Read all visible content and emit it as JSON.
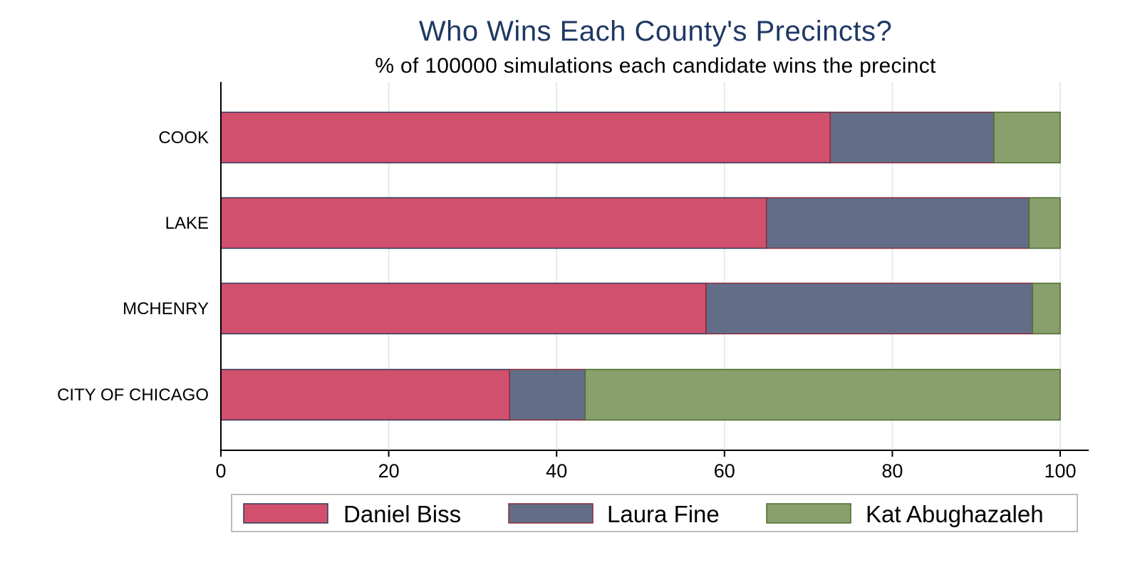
{
  "chart_data": {
    "type": "bar",
    "orientation": "horizontal",
    "stacked": true,
    "title": "Who Wins Each County's Precincts?",
    "subtitle": "% of 100000 simulations each candidate wins the precinct",
    "categories": [
      "COOK",
      "LAKE",
      "MCHENRY",
      "CITY OF CHICAGO"
    ],
    "series": [
      {
        "name": "Daniel Biss",
        "color": "#d1506d",
        "values": [
          72.6,
          65.0,
          57.8,
          34.4
        ]
      },
      {
        "name": "Laura Fine",
        "color": "#626e87",
        "values": [
          19.5,
          31.3,
          38.9,
          9.0
        ]
      },
      {
        "name": "Kat Abughazaleh",
        "color": "#87a06c",
        "values": [
          7.9,
          3.7,
          3.3,
          56.6
        ]
      }
    ],
    "xlim": [
      0,
      100
    ],
    "xticks": [
      "0",
      "20",
      "40",
      "60",
      "80",
      "100"
    ],
    "grid": true,
    "legend_position": "bottom"
  }
}
